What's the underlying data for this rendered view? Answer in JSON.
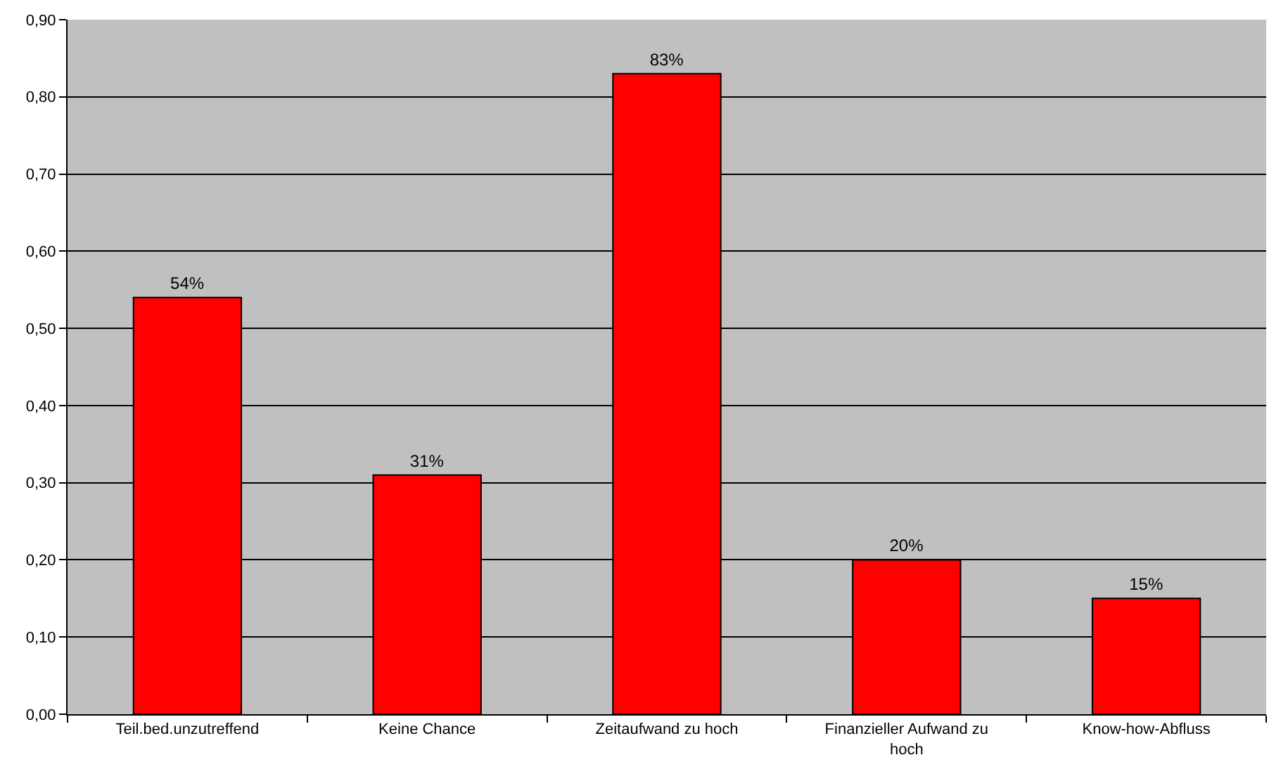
{
  "chart_data": {
    "type": "bar",
    "categories": [
      "Teil.bed.unzutreffend",
      "Keine Chance",
      "Zeitaufwand zu hoch",
      "Finanzieller Aufwand zu hoch",
      "Know-how-Abfluss"
    ],
    "values": [
      0.54,
      0.31,
      0.83,
      0.2,
      0.15
    ],
    "value_labels": [
      "54%",
      "31%",
      "83%",
      "20%",
      "15%"
    ],
    "color": "#ff0000",
    "ylim": [
      0,
      0.9
    ],
    "yticks": [
      {
        "value": 0,
        "label": "0,00"
      },
      {
        "value": 0.1,
        "label": "0,10"
      },
      {
        "value": 0.2,
        "label": "0,20"
      },
      {
        "value": 0.3,
        "label": "0,30"
      },
      {
        "value": 0.4,
        "label": "0,40"
      },
      {
        "value": 0.5,
        "label": "0,50"
      },
      {
        "value": 0.6,
        "label": "0,60"
      },
      {
        "value": 0.7,
        "label": "0,70"
      },
      {
        "value": 0.8,
        "label": "0,80"
      },
      {
        "value": 0.9,
        "label": "0,90"
      }
    ],
    "grid": "y",
    "legend": false
  }
}
